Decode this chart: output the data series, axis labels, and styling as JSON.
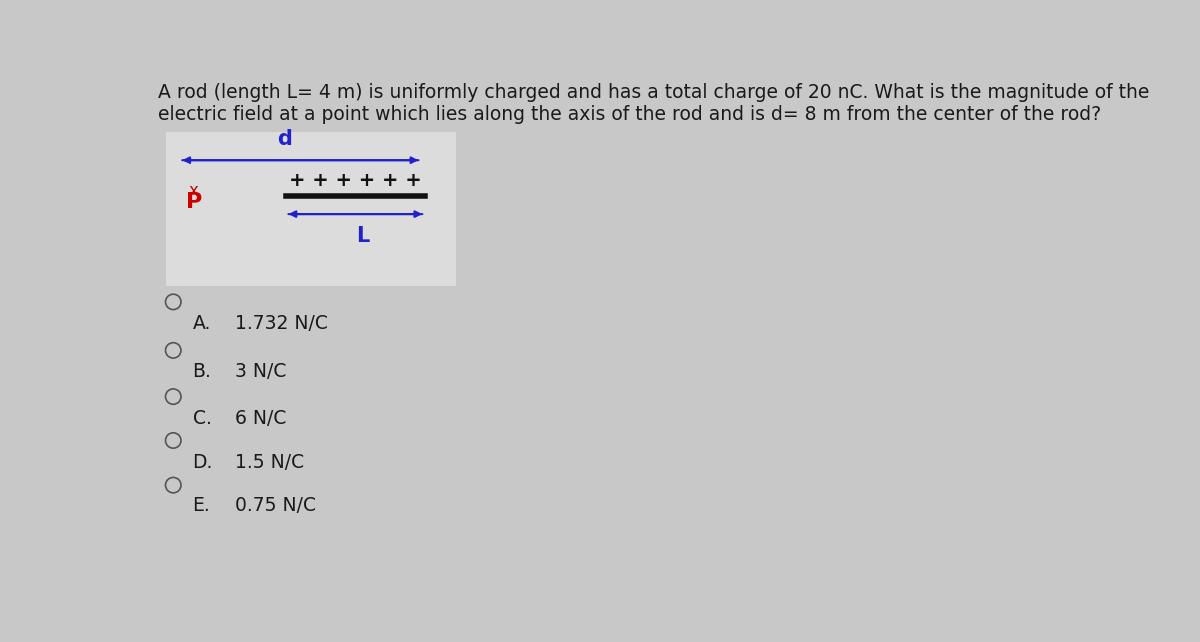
{
  "question_text": "A rod (length L= 4 m) is uniformly charged and has a total charge of 20 nC. What is the magnitude of the\nelectric field at a point which lies along the axis of the rod and is d= 8 m from the center of the rod?",
  "bg_color": "#c8c8c8",
  "diagram_bg": "#dcdcdc",
  "choices": [
    {
      "label": "A.",
      "text": "1.732 N/C"
    },
    {
      "label": "B.",
      "text": "3 N/C"
    },
    {
      "label": "C.",
      "text": "6 N/C"
    },
    {
      "label": "D.",
      "text": "1.5 N/C"
    },
    {
      "label": "E.",
      "text": "0.75 N/C"
    }
  ],
  "text_color": "#1a1a1a",
  "circle_color": "#555555",
  "arrow_color": "#2222cc",
  "rod_color": "#111111",
  "plus_color": "#111111",
  "label_d_color": "#2222cc",
  "label_L_color": "#2222cc",
  "label_x_color": "#cc0000",
  "label_P_color": "#cc0000",
  "title_fontsize": 13.5,
  "choice_fontsize": 13.5,
  "diagram_fontsize": 13
}
